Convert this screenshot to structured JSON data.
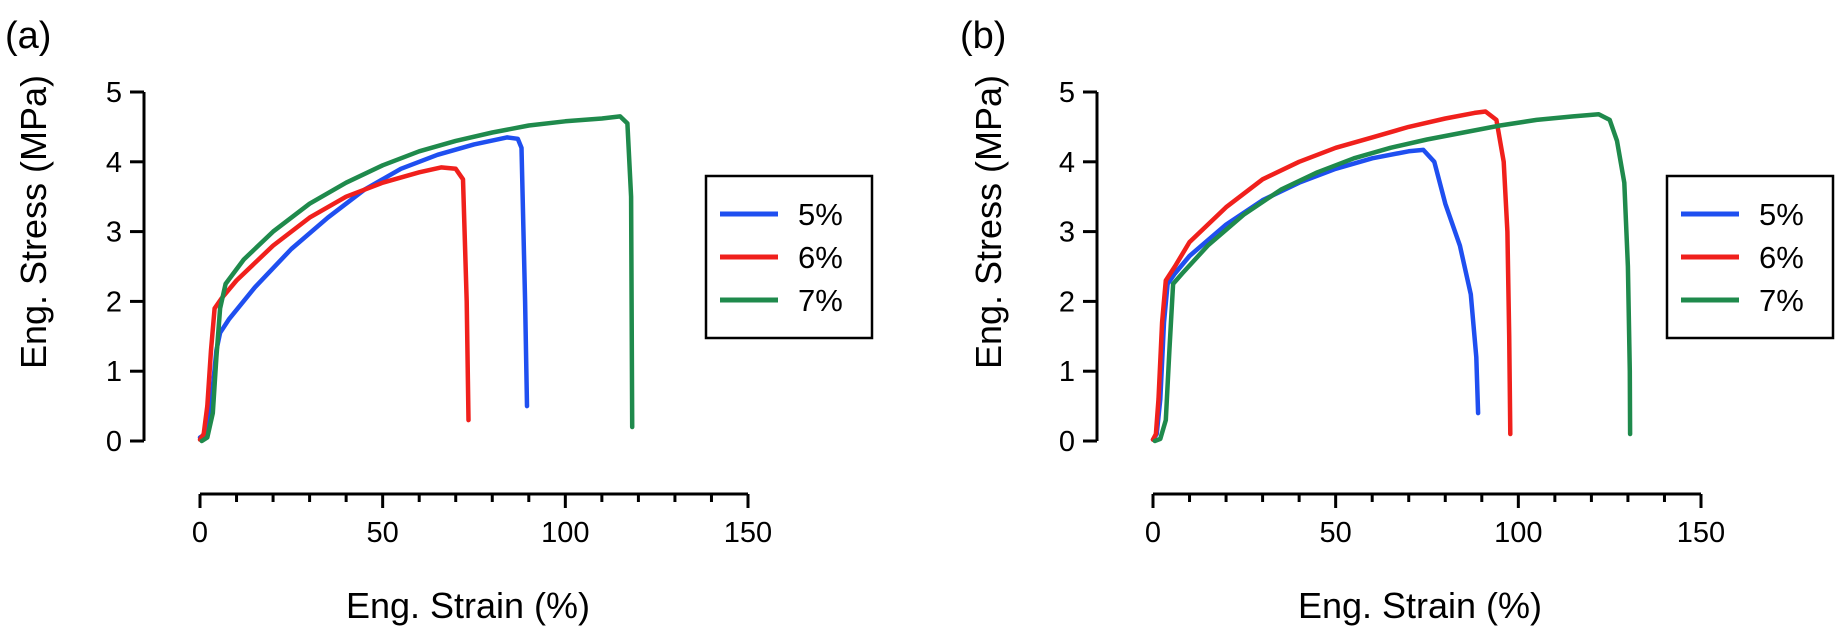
{
  "colors": {
    "blue": "#1f4ff0",
    "red": "#f0201c",
    "green": "#1f8a4c",
    "axis": "#000000"
  },
  "chart_data": [
    {
      "panel_label": "(a)",
      "type": "line",
      "xlabel": "Eng. Strain (%)",
      "ylabel": "Eng. Stress (MPa)",
      "xlim": [
        0,
        150
      ],
      "ylim": [
        0,
        5
      ],
      "xticks": [
        "0",
        "50",
        "100",
        "150"
      ],
      "yticks": [
        "0",
        "1",
        "2",
        "3",
        "4",
        "5"
      ],
      "legend": [
        "5%",
        "6%",
        "7%"
      ],
      "series": [
        {
          "name": "5%",
          "color": "#1f4ff0",
          "points": [
            [
              0,
              0.05
            ],
            [
              1.5,
              0.1
            ],
            [
              3,
              0.5
            ],
            [
              4.5,
              1.3
            ],
            [
              5.5,
              1.55
            ],
            [
              8,
              1.75
            ],
            [
              15,
              2.2
            ],
            [
              25,
              2.75
            ],
            [
              35,
              3.2
            ],
            [
              45,
              3.6
            ],
            [
              55,
              3.9
            ],
            [
              65,
              4.1
            ],
            [
              75,
              4.25
            ],
            [
              84,
              4.35
            ],
            [
              87,
              4.33
            ],
            [
              88,
              4.2
            ],
            [
              89,
              2.0
            ],
            [
              89.5,
              0.5
            ]
          ]
        },
        {
          "name": "6%",
          "color": "#f0201c",
          "points": [
            [
              0,
              0.02
            ],
            [
              1,
              0.1
            ],
            [
              2,
              0.5
            ],
            [
              3,
              1.3
            ],
            [
              4,
              1.9
            ],
            [
              6,
              2.05
            ],
            [
              10,
              2.3
            ],
            [
              20,
              2.8
            ],
            [
              30,
              3.2
            ],
            [
              40,
              3.5
            ],
            [
              50,
              3.7
            ],
            [
              60,
              3.85
            ],
            [
              66,
              3.92
            ],
            [
              70,
              3.9
            ],
            [
              72,
              3.75
            ],
            [
              73,
              2.0
            ],
            [
              73.5,
              0.3
            ]
          ]
        },
        {
          "name": "7%",
          "color": "#1f8a4c",
          "points": [
            [
              0.5,
              0
            ],
            [
              2,
              0.05
            ],
            [
              3.5,
              0.4
            ],
            [
              4.5,
              1.2
            ],
            [
              5.5,
              1.9
            ],
            [
              7,
              2.25
            ],
            [
              12,
              2.6
            ],
            [
              20,
              3.0
            ],
            [
              30,
              3.4
            ],
            [
              40,
              3.7
            ],
            [
              50,
              3.95
            ],
            [
              60,
              4.15
            ],
            [
              70,
              4.3
            ],
            [
              80,
              4.42
            ],
            [
              90,
              4.52
            ],
            [
              100,
              4.58
            ],
            [
              110,
              4.62
            ],
            [
              115,
              4.65
            ],
            [
              117,
              4.55
            ],
            [
              118,
              3.5
            ],
            [
              118.3,
              0.2
            ]
          ]
        }
      ]
    },
    {
      "panel_label": "(b)",
      "type": "line",
      "xlabel": "Eng. Strain (%)",
      "ylabel": "Eng. Stress (MPa)",
      "xlim": [
        0,
        150
      ],
      "ylim": [
        0,
        5
      ],
      "xticks": [
        "0",
        "50",
        "100",
        "150"
      ],
      "yticks": [
        "0",
        "1",
        "2",
        "3",
        "4",
        "5"
      ],
      "legend": [
        "5%",
        "6%",
        "7%"
      ],
      "series": [
        {
          "name": "5%",
          "color": "#1f4ff0",
          "points": [
            [
              0,
              0.02
            ],
            [
              1,
              0.1
            ],
            [
              2,
              0.6
            ],
            [
              3,
              1.7
            ],
            [
              4,
              2.25
            ],
            [
              6,
              2.4
            ],
            [
              10,
              2.65
            ],
            [
              20,
              3.1
            ],
            [
              30,
              3.45
            ],
            [
              40,
              3.7
            ],
            [
              50,
              3.9
            ],
            [
              60,
              4.05
            ],
            [
              70,
              4.15
            ],
            [
              74,
              4.17
            ],
            [
              77,
              4.0
            ],
            [
              80,
              3.4
            ],
            [
              84,
              2.8
            ],
            [
              87,
              2.1
            ],
            [
              88.5,
              1.2
            ],
            [
              89,
              0.4
            ]
          ]
        },
        {
          "name": "6%",
          "color": "#f0201c",
          "points": [
            [
              0,
              0.02
            ],
            [
              0.8,
              0.1
            ],
            [
              1.5,
              0.6
            ],
            [
              2.5,
              1.7
            ],
            [
              3.5,
              2.3
            ],
            [
              6,
              2.5
            ],
            [
              10,
              2.85
            ],
            [
              20,
              3.35
            ],
            [
              30,
              3.75
            ],
            [
              40,
              4.0
            ],
            [
              50,
              4.2
            ],
            [
              60,
              4.35
            ],
            [
              70,
              4.5
            ],
            [
              80,
              4.62
            ],
            [
              88,
              4.7
            ],
            [
              91,
              4.72
            ],
            [
              94,
              4.6
            ],
            [
              96,
              4.0
            ],
            [
              97,
              3.0
            ],
            [
              97.5,
              1.5
            ],
            [
              97.8,
              0.1
            ]
          ]
        },
        {
          "name": "7%",
          "color": "#1f8a4c",
          "points": [
            [
              0.5,
              0
            ],
            [
              2,
              0.03
            ],
            [
              3.5,
              0.3
            ],
            [
              4.5,
              1.3
            ],
            [
              5.5,
              2.25
            ],
            [
              8,
              2.4
            ],
            [
              15,
              2.8
            ],
            [
              25,
              3.25
            ],
            [
              35,
              3.6
            ],
            [
              45,
              3.85
            ],
            [
              55,
              4.05
            ],
            [
              65,
              4.2
            ],
            [
              75,
              4.32
            ],
            [
              85,
              4.42
            ],
            [
              95,
              4.52
            ],
            [
              105,
              4.6
            ],
            [
              115,
              4.65
            ],
            [
              122,
              4.68
            ],
            [
              125,
              4.6
            ],
            [
              127,
              4.3
            ],
            [
              129,
              3.7
            ],
            [
              130,
              2.5
            ],
            [
              130.5,
              1.0
            ],
            [
              130.6,
              0.1
            ]
          ]
        }
      ]
    }
  ]
}
